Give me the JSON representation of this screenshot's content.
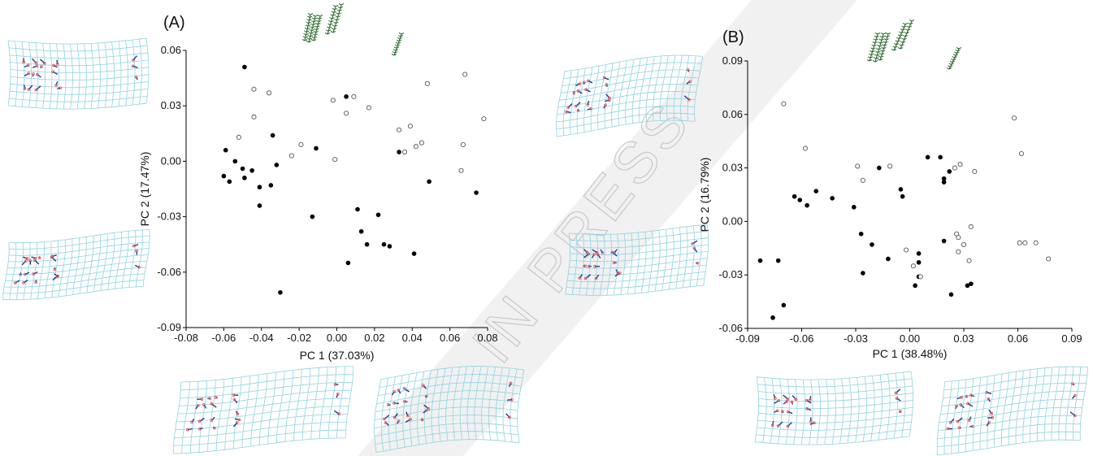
{
  "watermark": "IN PRESS",
  "colors": {
    "grid": "#8fd3e3",
    "vector": "#1a2a8a",
    "landmark": "#e05050",
    "leaf": "#2f6b2f",
    "filled": "#000000",
    "open": "#555555"
  },
  "chart_data": [
    {
      "type": "scatter",
      "panel": "(A)",
      "xlabel": "PC 1 (37.03%)",
      "ylabel": "PC 2 (17.47%)",
      "xlim": [
        -0.08,
        0.08
      ],
      "ylim": [
        -0.09,
        0.06
      ],
      "xticks": [
        -0.08,
        -0.06,
        -0.04,
        -0.02,
        0,
        0.02,
        0.04,
        0.06,
        0.08
      ],
      "xtick_labels": [
        "-0.08",
        "-0.06",
        "-0.04",
        "-0.02",
        "0.00",
        "0.02",
        "0.04",
        "0.06",
        "0.08"
      ],
      "yticks": [
        0.06,
        0.03,
        0,
        -0.03,
        -0.06,
        -0.09
      ],
      "ytick_labels": [
        "0.06",
        "0.03",
        "0.00",
        "-0.03",
        "-0.06",
        "-0.09"
      ],
      "grid": false,
      "series": [
        {
          "marker": "filled",
          "points": [
            [
              -0.049,
              0.051
            ],
            [
              -0.059,
              0.006
            ],
            [
              -0.06,
              -0.008
            ],
            [
              -0.057,
              -0.011
            ],
            [
              -0.054,
              0.0
            ],
            [
              -0.05,
              -0.004
            ],
            [
              -0.049,
              -0.009
            ],
            [
              -0.045,
              -0.005
            ],
            [
              -0.041,
              -0.014
            ],
            [
              -0.041,
              -0.024
            ],
            [
              -0.035,
              -0.013
            ],
            [
              -0.034,
              0.014
            ],
            [
              -0.032,
              -0.002
            ],
            [
              -0.03,
              -0.071
            ],
            [
              -0.013,
              -0.03
            ],
            [
              -0.011,
              0.007
            ],
            [
              0.005,
              0.035
            ],
            [
              0.006,
              -0.055
            ],
            [
              0.011,
              -0.026
            ],
            [
              0.013,
              -0.038
            ],
            [
              0.016,
              -0.045
            ],
            [
              0.022,
              -0.029
            ],
            [
              0.025,
              -0.045
            ],
            [
              0.028,
              -0.046
            ],
            [
              0.033,
              0.005
            ],
            [
              0.041,
              -0.05
            ],
            [
              0.049,
              -0.011
            ],
            [
              0.074,
              -0.017
            ]
          ]
        },
        {
          "marker": "open",
          "points": [
            [
              -0.044,
              0.039
            ],
            [
              -0.044,
              0.024
            ],
            [
              -0.036,
              0.037
            ],
            [
              -0.052,
              0.013
            ],
            [
              -0.024,
              0.003
            ],
            [
              -0.019,
              0.009
            ],
            [
              -0.001,
              0.001
            ],
            [
              -0.002,
              0.033
            ],
            [
              0.005,
              0.026
            ],
            [
              0.009,
              0.035
            ],
            [
              0.017,
              0.029
            ],
            [
              0.033,
              0.017
            ],
            [
              0.036,
              0.005
            ],
            [
              0.039,
              0.019
            ],
            [
              0.042,
              0.008
            ],
            [
              0.045,
              0.01
            ],
            [
              0.048,
              0.042
            ],
            [
              0.066,
              -0.005
            ],
            [
              0.067,
              0.009
            ],
            [
              0.068,
              0.047
            ],
            [
              0.078,
              0.023
            ]
          ]
        }
      ]
    },
    {
      "type": "scatter",
      "panel": "(B)",
      "xlabel": "PC 1 (38.48%)",
      "ylabel": "PC 2 (16.79%)",
      "xlim": [
        -0.09,
        0.09
      ],
      "ylim": [
        -0.06,
        0.09
      ],
      "xticks": [
        -0.09,
        -0.06,
        -0.03,
        0,
        0.03,
        0.06,
        0.09
      ],
      "xtick_labels": [
        "-0.09",
        "-0.06",
        "-0.03",
        "0.00",
        "0.03",
        "0.06",
        "0.09"
      ],
      "yticks": [
        0.09,
        0.06,
        0.03,
        0,
        -0.03,
        -0.06
      ],
      "ytick_labels": [
        "0.09",
        "0.06",
        "0.03",
        "0.00",
        "-0.03",
        "-0.06"
      ],
      "grid": false,
      "series": [
        {
          "marker": "filled",
          "points": [
            [
              -0.083,
              -0.022
            ],
            [
              -0.076,
              -0.054
            ],
            [
              -0.073,
              -0.022
            ],
            [
              -0.07,
              -0.047
            ],
            [
              -0.064,
              0.014
            ],
            [
              -0.061,
              0.012
            ],
            [
              -0.057,
              0.009
            ],
            [
              -0.052,
              0.017
            ],
            [
              -0.043,
              0.013
            ],
            [
              -0.031,
              0.008
            ],
            [
              -0.027,
              -0.007
            ],
            [
              -0.026,
              -0.029
            ],
            [
              -0.021,
              -0.013
            ],
            [
              -0.017,
              0.03
            ],
            [
              -0.012,
              -0.021
            ],
            [
              -0.005,
              0.018
            ],
            [
              -0.004,
              0.014
            ],
            [
              0.003,
              -0.036
            ],
            [
              0.005,
              -0.018
            ],
            [
              0.005,
              -0.023
            ],
            [
              0.005,
              -0.031
            ],
            [
              0.01,
              0.036
            ],
            [
              0.017,
              0.036
            ],
            [
              0.019,
              0.024
            ],
            [
              0.019,
              0.022
            ],
            [
              0.019,
              -0.011
            ],
            [
              0.022,
              0.028
            ],
            [
              0.023,
              -0.041
            ],
            [
              0.032,
              -0.036
            ],
            [
              0.034,
              -0.035
            ]
          ]
        },
        {
          "marker": "open",
          "points": [
            [
              -0.07,
              0.066
            ],
            [
              -0.058,
              0.041
            ],
            [
              -0.029,
              0.031
            ],
            [
              -0.026,
              0.023
            ],
            [
              -0.011,
              0.031
            ],
            [
              -0.002,
              -0.016
            ],
            [
              0.002,
              -0.025
            ],
            [
              0.006,
              -0.031
            ],
            [
              0.025,
              0.03
            ],
            [
              0.026,
              -0.007
            ],
            [
              0.027,
              -0.009
            ],
            [
              0.027,
              -0.017
            ],
            [
              0.028,
              0.032
            ],
            [
              0.03,
              -0.013
            ],
            [
              0.033,
              -0.022
            ],
            [
              0.034,
              -0.003
            ],
            [
              0.036,
              0.028
            ],
            [
              0.058,
              0.058
            ],
            [
              0.061,
              -0.012
            ],
            [
              0.062,
              0.038
            ],
            [
              0.064,
              -0.012
            ],
            [
              0.07,
              -0.012
            ],
            [
              0.077,
              -0.021
            ]
          ]
        }
      ]
    }
  ]
}
